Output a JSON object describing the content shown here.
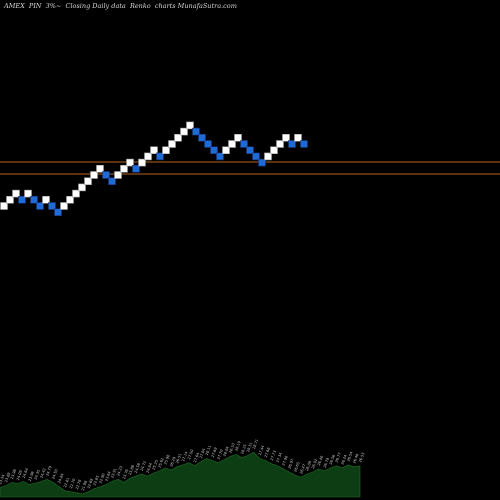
{
  "title": "AMEX  PIN  3%~  Closing Daily data  Renko  charts MunafaSutra.com",
  "colors": {
    "background": "#000000",
    "up_brick": "#ffffff",
    "down_brick": "#1e6bd6",
    "down_brick_border": "#1a2f6e",
    "reference_line": "#b5651d",
    "volume_fill": "#0d3d12",
    "volume_text": "#cfcfcf"
  },
  "chart_data": {
    "type": "renko",
    "brick_directions": [
      "up",
      "up",
      "up",
      "down",
      "up",
      "down",
      "down",
      "up",
      "down",
      "down",
      "up",
      "up",
      "up",
      "up",
      "up",
      "up",
      "up",
      "down",
      "down",
      "up",
      "up",
      "up",
      "down",
      "up",
      "up",
      "up",
      "down",
      "up",
      "up",
      "up",
      "up",
      "up",
      "down",
      "down",
      "down",
      "down",
      "down",
      "up",
      "up",
      "up",
      "down",
      "down",
      "down",
      "down",
      "up",
      "up",
      "up",
      "up",
      "down",
      "up",
      "down"
    ],
    "reference_levels": [
      "upper",
      "lower"
    ],
    "volume_labels": [
      "23.54",
      "23.88",
      "23.98",
      "24.09",
      "24.64",
      "23.96",
      "24.35",
      "24.42",
      "24.79",
      "24.50",
      "24.84",
      "22.81",
      "22.70",
      "22.78",
      "21.98",
      "22.69",
      "22.85",
      "22.90",
      "23.64",
      "23.91",
      "24.23",
      "23.76",
      "23.88",
      "24.58",
      "24.72",
      "24.84",
      "25.25",
      "25.62",
      "25.98",
      "26.29",
      "26.51",
      "27.14",
      "27.50",
      "27.64",
      "27.84",
      "28.11",
      "27.69",
      "27.70",
      "28.04",
      "28.10",
      "28.19",
      "28.25",
      "28.51",
      "28.71",
      "27.44",
      "27.68",
      "27.73",
      "27.34",
      "27.90",
      "26.97",
      "26.65",
      "26.47",
      "26.09",
      "26.02",
      "26.40",
      "26.79",
      "26.56",
      "26.77",
      "26.24",
      "26.54",
      "26.46",
      "26.53"
    ],
    "volume_levels": [
      0.18,
      0.22,
      0.28,
      0.26,
      0.3,
      0.24,
      0.27,
      0.3,
      0.34,
      0.28,
      0.2,
      0.12,
      0.1,
      0.08,
      0.06,
      0.1,
      0.16,
      0.2,
      0.24,
      0.3,
      0.34,
      0.28,
      0.36,
      0.4,
      0.44,
      0.4,
      0.46,
      0.5,
      0.56,
      0.52,
      0.58,
      0.62,
      0.66,
      0.6,
      0.68,
      0.74,
      0.7,
      0.66,
      0.72,
      0.78,
      0.82,
      0.76,
      0.8,
      0.86,
      0.74,
      0.7,
      0.64,
      0.6,
      0.54,
      0.48,
      0.42,
      0.38,
      0.44,
      0.48,
      0.54,
      0.5,
      0.56,
      0.6,
      0.56,
      0.62,
      0.58,
      0.6
    ]
  }
}
